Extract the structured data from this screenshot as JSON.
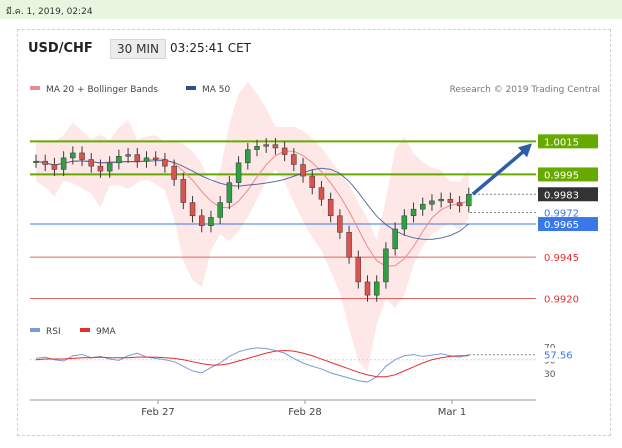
{
  "header": {
    "datetime": "มี.ค. 1, 2019, 02:24",
    "symbol": "USD/CHF",
    "timeframe": "30 MIN",
    "time": "03:25:41 CET"
  },
  "legend": {
    "ma20_label": "MA 20 + Bollinger Bands",
    "ma50_label": "MA 50",
    "research": "Research © 2019 Trading Central",
    "rsi_label": "RSI",
    "rsi_ma_label": "9MA"
  },
  "colors": {
    "ma20": "#ef8a8a",
    "ma50": "#2f4f91",
    "band_fill": "#fde3e3",
    "green_level": "#66aa00",
    "blue_level": "#3b78e7",
    "red_level": "#e06666",
    "arrow": "#2f5da8",
    "candle": "#3a3a3a",
    "candle_up": "#2ea043",
    "candle_down": "#d9534f",
    "rsi": "#7b9bd8",
    "rsi_ma": "#e03030"
  },
  "chart_data": [
    {
      "type": "candlestick",
      "title": "USD/CHF",
      "x_ticks": [
        "Feb 27",
        "Feb 28",
        "Mar 1"
      ],
      "y_range": [
        0.991,
        1.004
      ],
      "levels": [
        {
          "value": 1.0015,
          "label": "1.0015",
          "kind": "resistance",
          "color": "#66aa00"
        },
        {
          "value": 0.9995,
          "label": "0.9995",
          "kind": "resistance",
          "color": "#66aa00"
        },
        {
          "value": 0.9983,
          "label": "0.9983",
          "kind": "last_price",
          "color": "#333333"
        },
        {
          "value": 0.9972,
          "label": "0.9972",
          "kind": "pivot",
          "color": "#3b78e7"
        },
        {
          "value": 0.9965,
          "label": "0.9965",
          "kind": "support",
          "color": "#3b78e7"
        },
        {
          "value": 0.9945,
          "label": "0.9945",
          "kind": "support",
          "color": "#e06666"
        },
        {
          "value": 0.992,
          "label": "0.9920",
          "kind": "support",
          "color": "#e06666"
        }
      ],
      "arrow_target": 1.0015,
      "price_path": [
        1.0003,
        1.0001,
        0.9998,
        1.0005,
        1.0008,
        1.0004,
        1.0,
        0.9997,
        1.0002,
        1.0006,
        1.0007,
        1.0003,
        1.0005,
        1.0004,
        1.0,
        0.9992,
        0.9978,
        0.997,
        0.9964,
        0.9969,
        0.9978,
        0.999,
        1.0002,
        1.001,
        1.0012,
        1.0013,
        1.0011,
        1.0007,
        1.0001,
        0.9994,
        0.9987,
        0.998,
        0.997,
        0.996,
        0.9945,
        0.993,
        0.9922,
        0.993,
        0.995,
        0.9962,
        0.997,
        0.9974,
        0.9977,
        0.9979,
        0.998,
        0.9978,
        0.9976,
        0.9983
      ]
    },
    {
      "type": "line",
      "title": "RSI",
      "series": [
        {
          "name": "RSI",
          "values": [
            52,
            54,
            50,
            48,
            56,
            58,
            53,
            55,
            51,
            49,
            56,
            60,
            54,
            52,
            50,
            47,
            40,
            33,
            30,
            38,
            45,
            55,
            62,
            66,
            68,
            67,
            64,
            60,
            52,
            45,
            40,
            36,
            30,
            26,
            22,
            18,
            16,
            24,
            40,
            50,
            56,
            58,
            55,
            57,
            59,
            56,
            54,
            57.56
          ]
        },
        {
          "name": "9MA",
          "values": [
            50,
            51,
            51,
            51,
            52,
            53,
            53,
            54,
            53,
            53,
            53,
            54,
            54,
            54,
            53,
            52,
            50,
            47,
            44,
            42,
            42,
            44,
            48,
            52,
            56,
            60,
            63,
            64,
            63,
            60,
            56,
            51,
            46,
            41,
            36,
            31,
            27,
            24,
            24,
            27,
            33,
            39,
            45,
            50,
            53,
            55,
            56,
            56
          ]
        }
      ],
      "y_ticks": [
        70,
        50,
        30
      ],
      "y_range": [
        10,
        80
      ],
      "last_value": "57.56"
    }
  ]
}
